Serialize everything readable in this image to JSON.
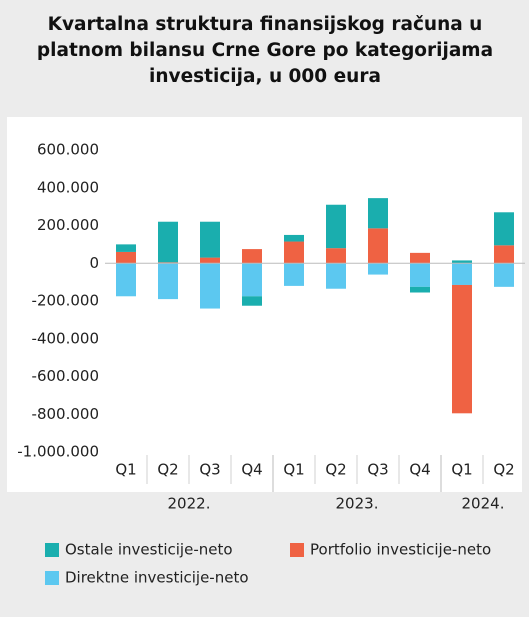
{
  "chart_data": {
    "type": "bar",
    "stacked": true,
    "title": "Kvartalna struktura finansijskog računa u platnom bilansu Crne Gore po kategorijama investicija, u 000 eura",
    "categories": [
      "Q1",
      "Q2",
      "Q3",
      "Q4",
      "Q1",
      "Q2",
      "Q3",
      "Q4",
      "Q1",
      "Q2"
    ],
    "groups": [
      {
        "label": "2022.",
        "count": 4
      },
      {
        "label": "2023.",
        "count": 4
      },
      {
        "label": "2024.",
        "count": 2
      }
    ],
    "series": [
      {
        "name": "Ostale investicije-neto",
        "color": "#1aaeae",
        "values": [
          40000,
          215000,
          190000,
          -50000,
          35000,
          230000,
          160000,
          -30000,
          15000,
          175000
        ]
      },
      {
        "name": "Portfolio investicije-neto",
        "color": "#ef6243",
        "values": [
          60000,
          5000,
          30000,
          75000,
          115000,
          80000,
          185000,
          55000,
          -680000,
          95000
        ]
      },
      {
        "name": "Direktne investicije-neto",
        "color": "#5cc8f0",
        "values": [
          -175000,
          -190000,
          -240000,
          -175000,
          -120000,
          -135000,
          -60000,
          -125000,
          -115000,
          -125000
        ]
      }
    ],
    "ylim": [
      -1000000,
      600000
    ],
    "yticks": [
      {
        "value": 600000,
        "label": "600.000"
      },
      {
        "value": 400000,
        "label": "400.000"
      },
      {
        "value": 200000,
        "label": "200.000"
      },
      0,
      {
        "value": -200000,
        "label": "-200.000"
      },
      {
        "value": -400000,
        "label": "-400.000"
      },
      {
        "value": -600000,
        "label": "-600.000"
      },
      {
        "value": -800000,
        "label": "-800.000"
      },
      {
        "value": -1000000,
        "label": "-1.000.000"
      }
    ],
    "grid": false
  }
}
